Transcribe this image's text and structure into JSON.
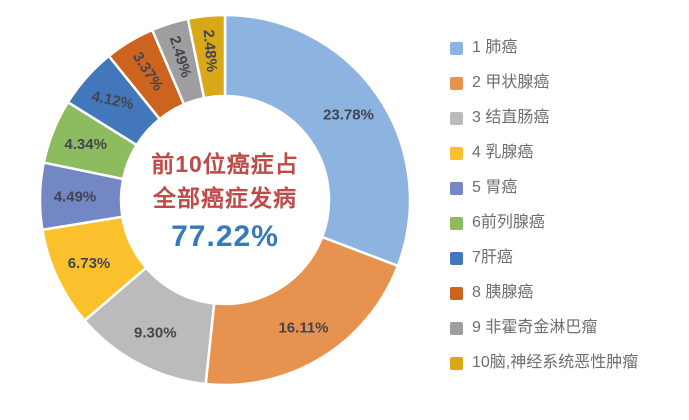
{
  "title": {
    "line1": "前10位癌症占",
    "line2": "全部癌症发病",
    "percent": "77.22%"
  },
  "chart_data": {
    "type": "pie",
    "subtype": "donut",
    "normalized_to_full_circle": true,
    "start_angle_deg": 0,
    "legend_position": "right",
    "center_text": [
      "前10位癌症占",
      "全部癌症发病",
      "77.22%"
    ],
    "categories": [
      "1 肺癌",
      "2 甲状腺癌",
      "3 结直肠癌",
      "4 乳腺癌",
      "5 胃癌",
      "6前列腺癌",
      "7肝癌",
      "8 胰腺癌",
      "9 非霍奇金淋巴瘤",
      "10脑,神经系统恶性肿瘤"
    ],
    "values": [
      23.78,
      16.11,
      9.3,
      6.73,
      4.49,
      4.34,
      4.12,
      3.37,
      2.49,
      2.48
    ],
    "labels": [
      "23.78%",
      "16.11%",
      "9.30%",
      "6.73%",
      "4.49%",
      "4.34%",
      "4.12%",
      "3.37%",
      "2.49%",
      "2.48%"
    ],
    "colors": [
      "#8DB4E0",
      "#E89250",
      "#BBBBBB",
      "#FBC12D",
      "#7287C4",
      "#8CBC5F",
      "#4377BC",
      "#CC6420",
      "#9E9E9E",
      "#D9A818"
    ],
    "label_rotations_deg": [
      0,
      0,
      0,
      0,
      0,
      0,
      12,
      57,
      73,
      85
    ]
  },
  "legend": {
    "items": [
      {
        "label": "1 肺癌",
        "color": "#8DB4E0"
      },
      {
        "label": "2 甲状腺癌",
        "color": "#E89250"
      },
      {
        "label": "3 结直肠癌",
        "color": "#BBBBBB"
      },
      {
        "label": "4 乳腺癌",
        "color": "#FBC12D"
      },
      {
        "label": "5 胃癌",
        "color": "#7287C4"
      },
      {
        "label": "6前列腺癌",
        "color": "#8CBC5F"
      },
      {
        "label": "7肝癌",
        "color": "#4377BC"
      },
      {
        "label": "8 胰腺癌",
        "color": "#CC6420"
      },
      {
        "label": "9 非霍奇金淋巴瘤",
        "color": "#9E9E9E"
      },
      {
        "label": "10脑,神经系统恶性肿瘤",
        "color": "#D9A818"
      }
    ]
  },
  "colors": {
    "center_title": "#BE4B48",
    "center_percent": "#3679BD",
    "slice_label": "#44444E",
    "legend_text": "#6E6E6E",
    "slice_gap": "#FFFFFF",
    "background": "#FFFFFF"
  }
}
